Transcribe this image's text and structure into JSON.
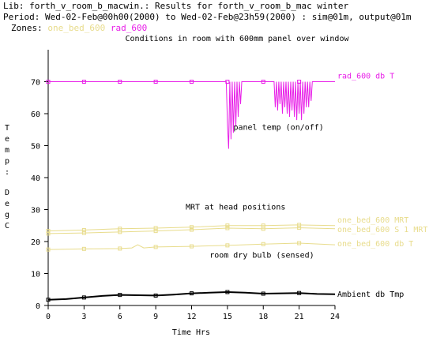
{
  "header": {
    "lib_line": "Lib: forth_v_room_b_macwin.: Results for forth_v_room_b_mac winter",
    "period_line": "Period: Wed-02-Feb@00h00(2000) to Wed-02-Feb@23h59(2000) : sim@01m, output@01m",
    "zones_label": "Zones:",
    "zone_names": [
      "one_bed_600",
      "rad_600"
    ]
  },
  "colors": {
    "rad": "#e81ee8",
    "mrt": "#e8dc8c",
    "ambient": "#000000",
    "axis": "#000000"
  },
  "chart_data": {
    "type": "line",
    "title": "Conditions in room with 600mm panel over window",
    "xlabel": "Time Hrs",
    "ylabel": "Temp: DegC",
    "xlim": [
      0,
      24
    ],
    "ylim": [
      0,
      80
    ],
    "xticks": [
      0,
      3,
      6,
      9,
      12,
      15,
      18,
      21,
      24
    ],
    "yticks": [
      0,
      10,
      20,
      30,
      40,
      50,
      60,
      70
    ],
    "grid": false,
    "series": [
      {
        "name": "rad_600 db T",
        "color_key": "rad",
        "x": [
          0,
          14.9,
          15.0,
          15.1,
          15.2,
          15.3,
          15.4,
          15.5,
          15.6,
          15.7,
          15.8,
          15.9,
          16.0,
          16.1,
          16.2,
          18.9,
          19.0,
          19.1,
          19.2,
          19.3,
          19.4,
          19.5,
          19.6,
          19.7,
          19.8,
          19.9,
          20.0,
          20.1,
          20.2,
          20.3,
          20.4,
          20.5,
          20.6,
          20.7,
          20.8,
          20.9,
          21.0,
          21.1,
          21.2,
          21.3,
          21.4,
          21.5,
          21.6,
          21.7,
          21.8,
          21.9,
          22.0,
          22.1,
          22.2,
          24
        ],
        "y": [
          70,
          70,
          57,
          49,
          70,
          52,
          70,
          54,
          70,
          56,
          70,
          59,
          70,
          63,
          70,
          70,
          62,
          70,
          61,
          70,
          63,
          70,
          60,
          70,
          62,
          70,
          60,
          70,
          59,
          70,
          61,
          70,
          59,
          70,
          58,
          70,
          60,
          70,
          58,
          70,
          60,
          70,
          62,
          70,
          62,
          70,
          64,
          70,
          70,
          70
        ],
        "marker_x": [
          0,
          3,
          6,
          9,
          12,
          15,
          18,
          21
        ]
      },
      {
        "name": "one_bed_600 MRT",
        "color_key": "mrt",
        "x": [
          0,
          3,
          6,
          9,
          12,
          15,
          18,
          21,
          24
        ],
        "y": [
          23.3,
          23.6,
          24.0,
          24.2,
          24.5,
          25.0,
          25.0,
          25.2,
          25.0
        ],
        "marker_x": [
          0,
          3,
          6,
          9,
          12,
          15,
          18,
          21
        ]
      },
      {
        "name": "one_bed_600 S 1 MRT",
        "color_key": "mrt",
        "x": [
          0,
          3,
          6,
          9,
          12,
          15,
          18,
          21,
          24
        ],
        "y": [
          22.5,
          22.7,
          23.0,
          23.3,
          23.7,
          24.2,
          24.0,
          24.3,
          24.0
        ],
        "marker_x": [
          0,
          3,
          6,
          9,
          12,
          15,
          18,
          21
        ]
      },
      {
        "name": "one_bed_600 db T",
        "color_key": "mrt",
        "x": [
          0,
          3,
          6,
          7,
          7.5,
          8,
          9,
          12,
          15,
          18,
          21,
          24
        ],
        "y": [
          17.5,
          17.7,
          17.8,
          18.0,
          19.0,
          18.0,
          18.3,
          18.5,
          18.8,
          19.2,
          19.5,
          19.0
        ],
        "marker_x": [
          0,
          3,
          6,
          9,
          12,
          15,
          18,
          21
        ]
      },
      {
        "name": "Ambient db Tmp",
        "color_key": "ambient",
        "x": [
          0,
          1.5,
          3,
          4.5,
          6,
          7.5,
          9,
          10.5,
          12,
          13.5,
          15,
          16.5,
          18,
          19.5,
          21,
          22.5,
          24
        ],
        "y": [
          1.8,
          2.0,
          2.5,
          3.0,
          3.3,
          3.2,
          3.1,
          3.4,
          3.8,
          4.0,
          4.2,
          4.0,
          3.7,
          3.8,
          3.9,
          3.6,
          3.5
        ],
        "marker_x": [
          0,
          3,
          6,
          9,
          12,
          15,
          18,
          21
        ]
      }
    ],
    "annotations": [
      {
        "text": "panel temp (on/off)",
        "x": 15.5,
        "y": 55
      },
      {
        "text": "MRT at head positions",
        "x": 11.5,
        "y": 30
      },
      {
        "text": "room dry bulb (sensed)",
        "x": 13.5,
        "y": 15
      }
    ]
  }
}
